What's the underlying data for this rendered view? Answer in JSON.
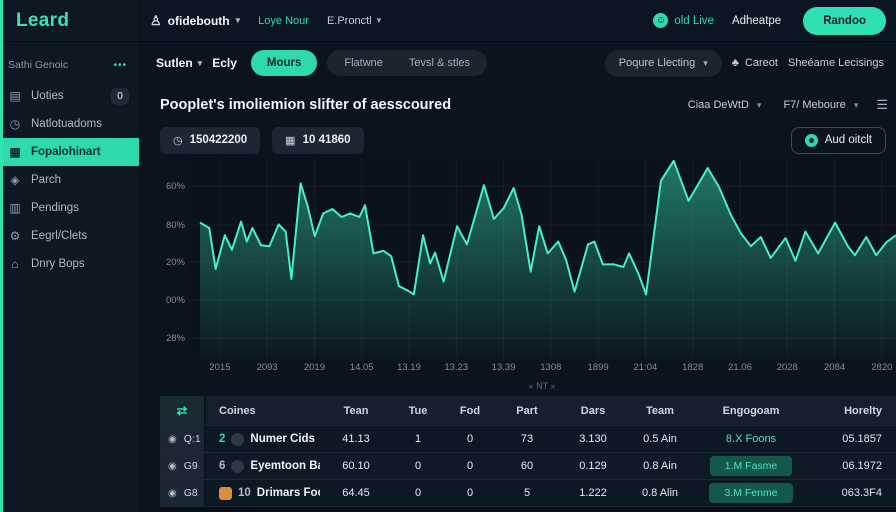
{
  "app": {
    "logo": "Leard",
    "accent": "#2fd9ae",
    "edge_color": "#2ee6ad"
  },
  "icons": {
    "account": "♙",
    "live": "☺",
    "clock": "◷",
    "calendar": "▦",
    "menu": "☰",
    "caret": "▾",
    "cart": "♣",
    "sort": "⇄",
    "row": "◉",
    "uoties": "▤",
    "natlotuadoms": "◷",
    "fopalohinart": "▦",
    "parch": "◈",
    "pendings": "▥",
    "eegrl": "⚙",
    "dnry": "⌂",
    "dots": "•••"
  },
  "header": {
    "account": "ofidebouth",
    "link": "Loye Nour",
    "project": "E.Pronctl",
    "live_label": "old Live",
    "nav_label": "Adheatpe",
    "cta_label": "Randoo"
  },
  "subbar": {
    "left_dropdown": "Sutlen",
    "left_label": "Ecly",
    "active_pill": "Mours",
    "pill_1": "Flatwne",
    "pill_2": "Tevsl & stles",
    "right_dropdown": "Poqure Llecting",
    "cart_label": "Careot",
    "right_link": "Sheéame Lecisings"
  },
  "sidebar": {
    "section": "Sathi Genoic",
    "ellipsis": "•••",
    "items": [
      {
        "label": "Uoties",
        "badge": "0"
      },
      {
        "label": "Natlotuadoms"
      },
      {
        "label": "Fopalohinart"
      },
      {
        "label": "Parch"
      },
      {
        "label": "Pendings"
      },
      {
        "label": "Eegrl/Clets"
      },
      {
        "label": "Dnry Bops"
      }
    ]
  },
  "main": {
    "title": "Pooplet's imoliemion slifter of aesscoured",
    "chip_1": "150422200",
    "chip_2": "10 41860",
    "filter_1": "Ciaa DeWtD",
    "filter_2": "F7/ Meboure",
    "audit_button": "Aud oitclt",
    "pagination": "« NT »"
  },
  "chart_data": {
    "type": "area",
    "title": "Pooplet's imoliemion slifter of aesscoured",
    "xlabel": "",
    "ylabel": "",
    "ylim": [
      0,
      100
    ],
    "grid": true,
    "legend": "none",
    "line_color": "#47efc5",
    "area_top_color": "rgba(52,204,167,0.55)",
    "area_bottom_color": "rgba(52,204,167,0.03)",
    "y_ticks": [
      "60%",
      "80%",
      "20%",
      "00%",
      "28%"
    ],
    "x_ticks": [
      "2015",
      "2093",
      "2019",
      "14.05",
      "13.19",
      "13.23",
      "13.39",
      "1308",
      "1899",
      "21:04",
      "1828",
      "21.06",
      "2028",
      "2084",
      "2820"
    ],
    "points": [
      [
        1.7,
        67.7
      ],
      [
        3.0,
        65.0
      ],
      [
        3.9,
        44.5
      ],
      [
        5.2,
        61.4
      ],
      [
        6.2,
        54.1
      ],
      [
        7.5,
        68.2
      ],
      [
        8.3,
        58.2
      ],
      [
        9.1,
        65.0
      ],
      [
        10.3,
        56.4
      ],
      [
        11.5,
        55.9
      ],
      [
        12.8,
        66.8
      ],
      [
        13.8,
        63.2
      ],
      [
        14.6,
        39.5
      ],
      [
        15.9,
        87.3
      ],
      [
        16.9,
        75.9
      ],
      [
        17.9,
        60.9
      ],
      [
        19.1,
        72.3
      ],
      [
        20.4,
        74.5
      ],
      [
        21.7,
        70.5
      ],
      [
        22.9,
        72.3
      ],
      [
        24.2,
        70.5
      ],
      [
        25.0,
        76.4
      ],
      [
        26.2,
        52.3
      ],
      [
        27.6,
        53.6
      ],
      [
        28.7,
        50.9
      ],
      [
        29.8,
        35.9
      ],
      [
        31.1,
        33.6
      ],
      [
        31.9,
        31.8
      ],
      [
        33.2,
        61.4
      ],
      [
        34.2,
        47.3
      ],
      [
        34.9,
        52.7
      ],
      [
        36.1,
        38.2
      ],
      [
        38.0,
        65.9
      ],
      [
        39.4,
        56.8
      ],
      [
        41.8,
        86.4
      ],
      [
        43.2,
        69.5
      ],
      [
        44.6,
        75.0
      ],
      [
        46.0,
        85.0
      ],
      [
        47.1,
        71.8
      ],
      [
        48.4,
        43.2
      ],
      [
        49.6,
        65.9
      ],
      [
        50.8,
        52.3
      ],
      [
        52.3,
        58.2
      ],
      [
        53.4,
        49.1
      ],
      [
        54.6,
        33.2
      ],
      [
        56.5,
        56.8
      ],
      [
        57.4,
        58.2
      ],
      [
        58.6,
        46.8
      ],
      [
        60.2,
        46.8
      ],
      [
        61.5,
        45.5
      ],
      [
        62.3,
        52.3
      ],
      [
        63.6,
        42.3
      ],
      [
        64.7,
        31.8
      ],
      [
        66.8,
        88.6
      ],
      [
        68.6,
        98.6
      ],
      [
        70.7,
        78.6
      ],
      [
        73.4,
        95.0
      ],
      [
        75.0,
        85.5
      ],
      [
        76.7,
        71.4
      ],
      [
        78.1,
        62.3
      ],
      [
        79.5,
        55.9
      ],
      [
        80.9,
        60.5
      ],
      [
        82.3,
        50.0
      ],
      [
        84.4,
        60.0
      ],
      [
        85.8,
        48.6
      ],
      [
        87.2,
        63.2
      ],
      [
        89.0,
        52.3
      ],
      [
        91.4,
        67.7
      ],
      [
        93.2,
        55.9
      ],
      [
        94.2,
        51.4
      ],
      [
        95.8,
        60.5
      ],
      [
        97.2,
        51.4
      ],
      [
        98.6,
        57.7
      ],
      [
        100,
        61.4
      ]
    ]
  },
  "table": {
    "columns": [
      "Coines",
      "Tean",
      "Tue",
      "Fod",
      "Part",
      "Dars",
      "Team",
      "Engogoam",
      "Horelty"
    ],
    "rows": [
      {
        "id": "Q:1",
        "num": "2",
        "name": "Numer Cids",
        "tean": "41.13",
        "tue": "1",
        "fod": "0",
        "part": "73",
        "dars": "3.130",
        "team": "0.5 Ain",
        "engagement": "8.X Foons",
        "horelty": "05.1857"
      },
      {
        "id": "G9",
        "num": "6",
        "name": "Eyemtoon Barlit",
        "tean": "60.10",
        "tue": "0",
        "fod": "0",
        "part": "60",
        "dars": "0.129",
        "team": "0.8 Ain",
        "engagement": "1.M Fasme",
        "horelty": "06.1972"
      },
      {
        "id": "G8",
        "num": "10",
        "name": "Drimars Football",
        "tean": "64.45",
        "tue": "0",
        "fod": "0",
        "part": "5",
        "dars": "1.222",
        "team": "0.8 Alin",
        "engagement": "3.M Fenme",
        "horelty": "063.3F4"
      }
    ]
  }
}
